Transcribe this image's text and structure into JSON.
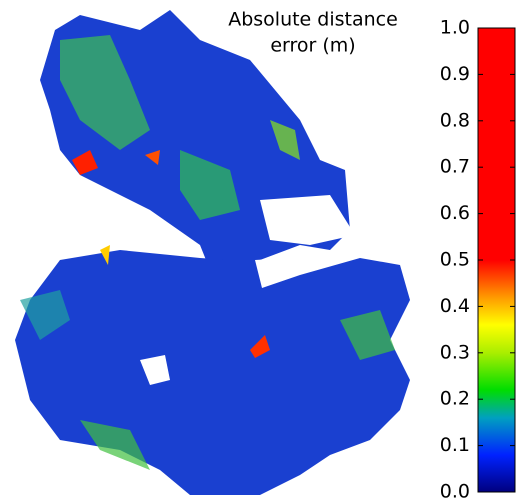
{
  "chart_data": {
    "type": "colorbar",
    "title": [
      "Absolute distance",
      "error (m)"
    ],
    "ylim": [
      0,
      1
    ],
    "yticks": [
      {
        "value": 0,
        "label": "0.0"
      },
      0.1,
      0.2,
      0.3,
      0.4,
      0.5,
      0.6,
      0.7,
      0.8,
      0.9,
      {
        "value": 1,
        "label": "1.0"
      }
    ],
    "colormap": [
      {
        "value": 0,
        "color": "#00007f"
      },
      {
        "value": 0.08,
        "color": "#0022ff"
      },
      {
        "value": 0.16,
        "color": "#00a0c0"
      },
      {
        "value": 0.22,
        "color": "#00dd00"
      },
      {
        "value": 0.3,
        "color": "#aaee00"
      },
      {
        "value": 0.36,
        "color": "#ffff00"
      },
      {
        "value": 0.42,
        "color": "#ff9900"
      },
      {
        "value": 0.5,
        "color": "#ff0000"
      },
      {
        "value": 1,
        "color": "#ff0000"
      }
    ]
  }
}
